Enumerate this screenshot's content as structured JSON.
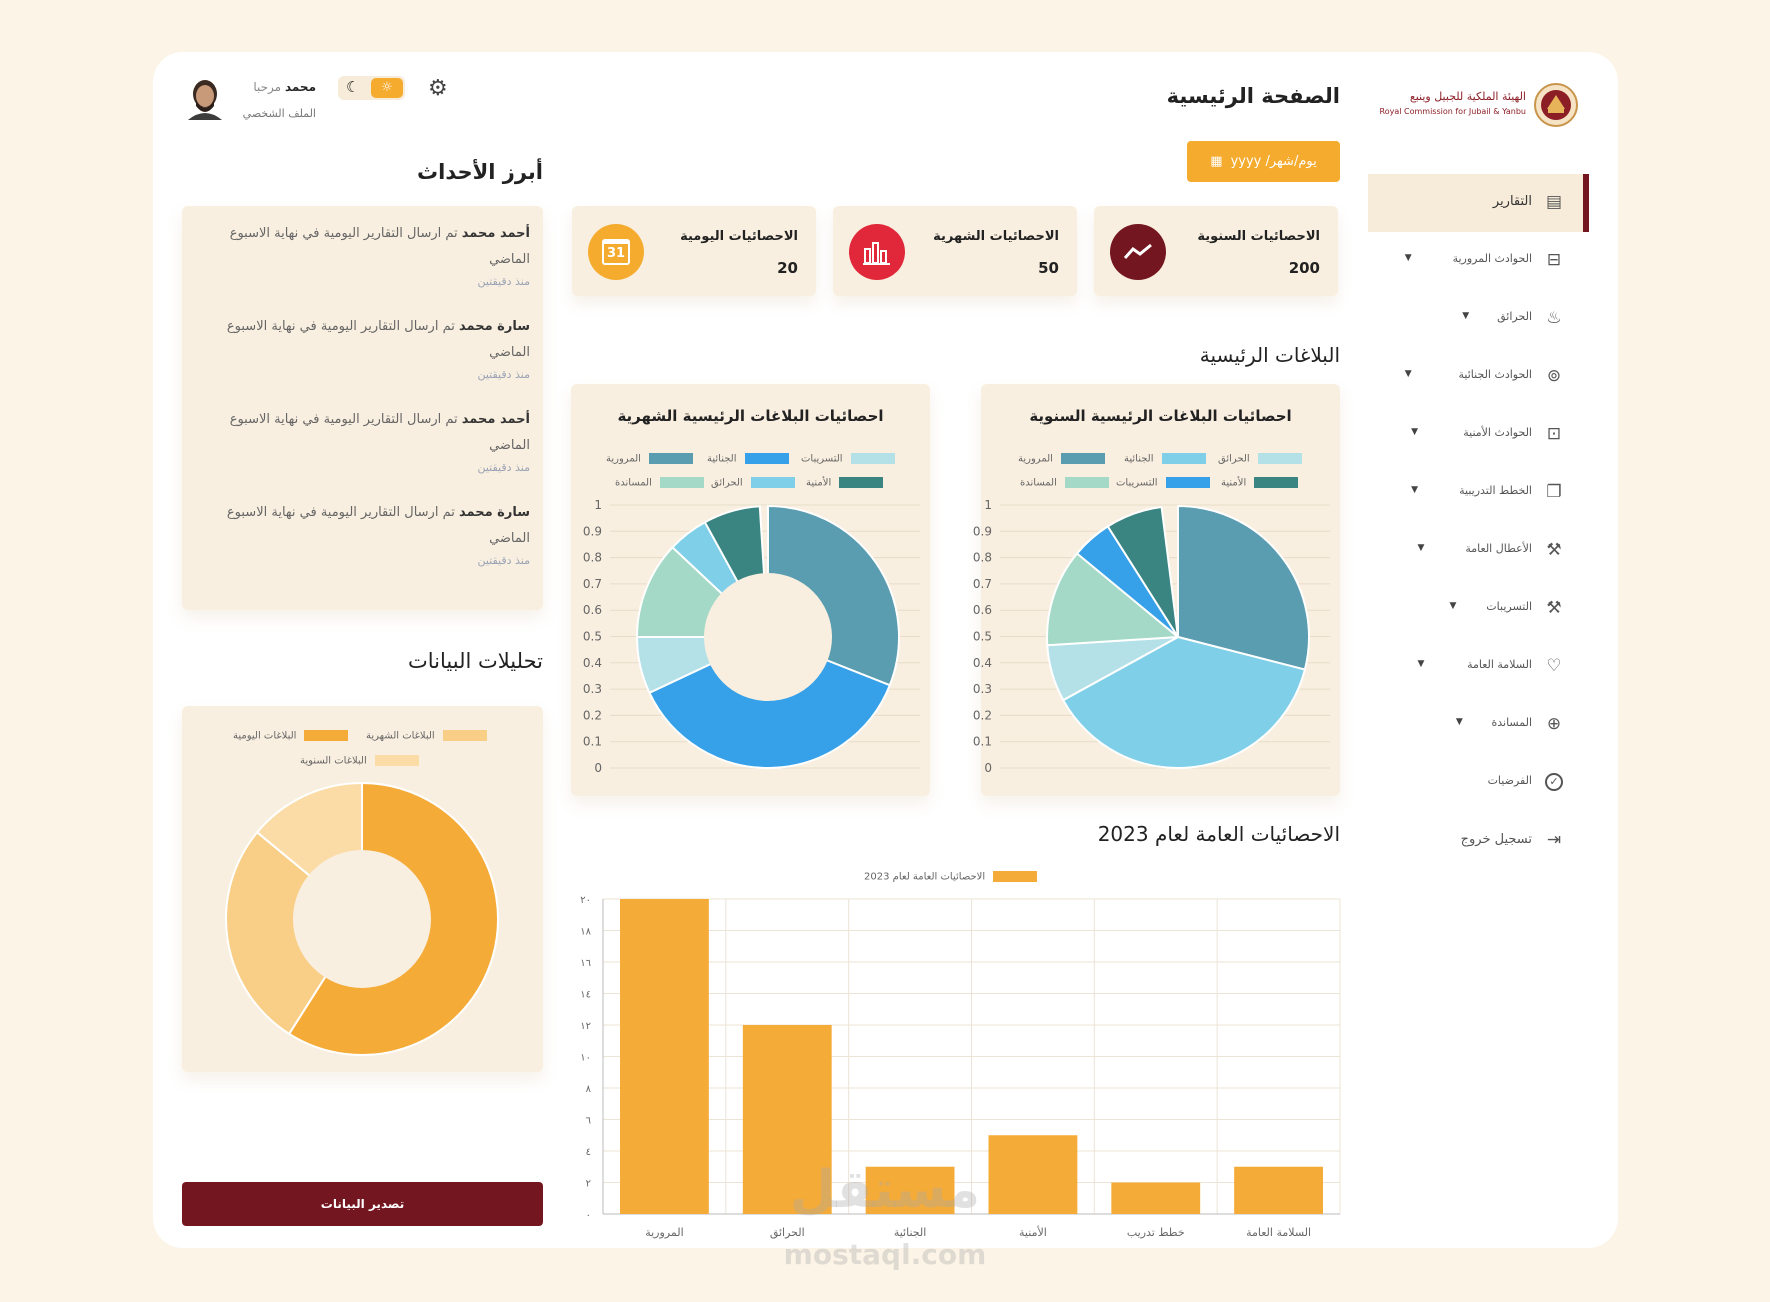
{
  "brand": {
    "name_ar": "الهيئة الملكية للجبيل وينبع",
    "name_en": "Royal Commission for Jubail & Yanbu"
  },
  "header": {
    "page_title": "الصفحة الرئيسية",
    "greeting": "مرحبا",
    "user_name": "محمد",
    "profile_link": "الملف الشخصي",
    "date_button": "يوم/شهر/ yyyy"
  },
  "sidebar": {
    "items": [
      {
        "label": "التقارير",
        "icon": "report-icon",
        "active": true,
        "has_dropdown": false
      },
      {
        "label": "الحوادث المرورية",
        "icon": "car-icon",
        "has_dropdown": true
      },
      {
        "label": "الحرائق",
        "icon": "flame-icon",
        "has_dropdown": true
      },
      {
        "label": "الحوادث الجنائية",
        "icon": "fingerprint-icon",
        "has_dropdown": true
      },
      {
        "label": "الحوادث الأمنية",
        "icon": "save-icon",
        "has_dropdown": true
      },
      {
        "label": "الخطط التدريبية",
        "icon": "copy-icon",
        "has_dropdown": true
      },
      {
        "label": "الأعطال العامة",
        "icon": "wrench-icon",
        "has_dropdown": true
      },
      {
        "label": "التسريبات",
        "icon": "hammer-icon",
        "has_dropdown": true
      },
      {
        "label": "السلامة العامة",
        "icon": "heart-icon",
        "has_dropdown": true
      },
      {
        "label": "المساندة",
        "icon": "globe-icon",
        "has_dropdown": true
      },
      {
        "label": "الفرضيات",
        "icon": "check-circle-icon",
        "has_dropdown": false
      },
      {
        "label": "تسجيل خروج",
        "icon": "logout-icon",
        "has_dropdown": false
      }
    ]
  },
  "stats": [
    {
      "title": "الاحصائيات السنوية",
      "value": "200",
      "color": "#74161f",
      "icon": "trend-icon"
    },
    {
      "title": "الاحصائيات الشهرية",
      "value": "50",
      "color": "#e0283a",
      "icon": "bar-chart-icon"
    },
    {
      "title": "الاحصائيات اليومية",
      "value": "20",
      "color": "#f5ab2e",
      "icon": "calendar-icon",
      "icon_text": "31"
    }
  ],
  "sections": {
    "main_reports": "البلاغات الرئيسية",
    "annual_stats": "الاحصائيات العامة لعام 2023",
    "highlights": "أبرز الأحداث",
    "analytics": "تحليلات البيانات"
  },
  "events": [
    {
      "name": "أحمد محمد",
      "text": "تم ارسال التقارير اليومية في نهاية الاسبوع الماضي",
      "time": "منذ دقيقتين"
    },
    {
      "name": "سارة محمد",
      "text": "تم ارسال التقارير اليومية في نهاية الاسبوع الماضي",
      "time": "منذ دقيقتين"
    },
    {
      "name": "أحمد محمد",
      "text": "تم ارسال التقارير اليومية في نهاية الاسبوع الماضي",
      "time": "منذ دقيقتين"
    },
    {
      "name": "سارة محمد",
      "text": "تم ارسال التقارير اليومية في نهاية الاسبوع الماضي",
      "time": "منذ دقيقتين"
    }
  ],
  "export_button": "تصدير البيانات",
  "watermark": {
    "ar": "مستقل",
    "en": "mostaql.com"
  },
  "chart_data": [
    {
      "type": "pie",
      "title": "احصائيات البلاغات الرئيسية السنوية",
      "axis_ticks": [
        "0",
        "0.1",
        "0.2",
        "0.3",
        "0.4",
        "0.5",
        "0.6",
        "0.7",
        "0.8",
        "0.9",
        "1"
      ],
      "legend": [
        {
          "name": "المرورية",
          "color": "#5a9cb0"
        },
        {
          "name": "الجنائية",
          "color": "#7fcfe8"
        },
        {
          "name": "الحرائق",
          "color": "#b4e0e8"
        },
        {
          "name": "المساندة",
          "color": "#a3d9c6"
        },
        {
          "name": "التسريبات",
          "color": "#36a0e8"
        },
        {
          "name": "الأمنية",
          "color": "#3a8582"
        }
      ],
      "slices": [
        {
          "name": "المرورية",
          "value": 0.29,
          "color": "#5a9cb0"
        },
        {
          "name": "الجنائية",
          "value": 0.38,
          "color": "#7fcfe8"
        },
        {
          "name": "الحرائق",
          "value": 0.07,
          "color": "#b4e0e8"
        },
        {
          "name": "المساندة",
          "value": 0.12,
          "color": "#a3d9c6"
        },
        {
          "name": "التسريبات",
          "value": 0.05,
          "color": "#36a0e8"
        },
        {
          "name": "الأمنية",
          "value": 0.07,
          "color": "#3a8582"
        }
      ]
    },
    {
      "type": "pie",
      "donut": true,
      "title": "احصائيات البلاغات الرئيسية الشهرية",
      "axis_ticks": [
        "0",
        "0.1",
        "0.2",
        "0.3",
        "0.4",
        "0.5",
        "0.6",
        "0.7",
        "0.8",
        "0.9",
        "1"
      ],
      "legend": [
        {
          "name": "المرورية",
          "color": "#5a9cb0"
        },
        {
          "name": "الجنائية",
          "color": "#36a0e8"
        },
        {
          "name": "التسريبات",
          "color": "#b4e0e8"
        },
        {
          "name": "المساندة",
          "color": "#a3d9c6"
        },
        {
          "name": "الحرائق",
          "color": "#7fcfe8"
        },
        {
          "name": "الأمنية",
          "color": "#3a8582"
        }
      ],
      "slices": [
        {
          "name": "المرورية",
          "value": 0.31,
          "color": "#5a9cb0"
        },
        {
          "name": "الجنائية",
          "value": 0.37,
          "color": "#36a0e8"
        },
        {
          "name": "التسريبات",
          "value": 0.07,
          "color": "#b4e0e8"
        },
        {
          "name": "المساندة",
          "value": 0.12,
          "color": "#a3d9c6"
        },
        {
          "name": "الحرائق",
          "value": 0.05,
          "color": "#7fcfe8"
        },
        {
          "name": "الأمنية",
          "value": 0.07,
          "color": "#3a8582"
        }
      ]
    },
    {
      "type": "pie",
      "donut": true,
      "legend": [
        {
          "name": "البلاغات اليومية",
          "color": "#f5ab38"
        },
        {
          "name": "البلاغات الشهرية",
          "color": "#f9cf88"
        },
        {
          "name": "البلاغات السنوية",
          "color": "#fbdca6"
        }
      ],
      "slices": [
        {
          "name": "البلاغات اليومية",
          "value": 0.59,
          "color": "#f5ab38"
        },
        {
          "name": "البلاغات الشهرية",
          "value": 0.27,
          "color": "#f9cf88"
        },
        {
          "name": "البلاغات السنوية",
          "value": 0.14,
          "color": "#fbdca6"
        }
      ]
    },
    {
      "type": "bar",
      "series": [
        {
          "name": "الاحصائيات العامة لعام 2023",
          "color": "#f5ab38",
          "values": [
            20,
            12,
            3,
            5,
            2,
            3
          ]
        }
      ],
      "categories": [
        "المرورية",
        "الحرائق",
        "الجنائية",
        "الأمنية",
        "خطط تدريب",
        "السلامة العامة"
      ],
      "ylim": [
        0,
        20
      ],
      "yticks": [
        "٠",
        "٢",
        "٤",
        "٦",
        "٨",
        "١٠",
        "١٢",
        "١٤",
        "١٦",
        "١٨",
        "٢٠"
      ],
      "grid": true,
      "legend_position": "top"
    }
  ]
}
